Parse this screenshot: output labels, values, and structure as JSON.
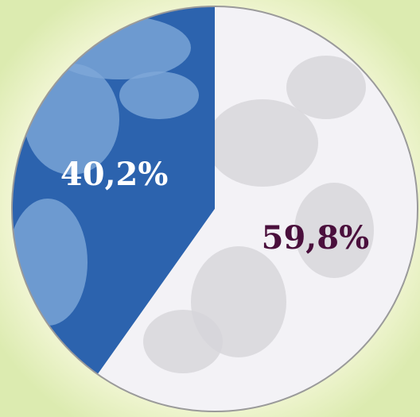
{
  "chart_data": {
    "type": "pie",
    "values": [
      40.2,
      59.8
    ],
    "value_labels": [
      "40,2%",
      "59,8%"
    ],
    "colors": [
      "#2c63ae",
      "#f3f2f6"
    ]
  }
}
